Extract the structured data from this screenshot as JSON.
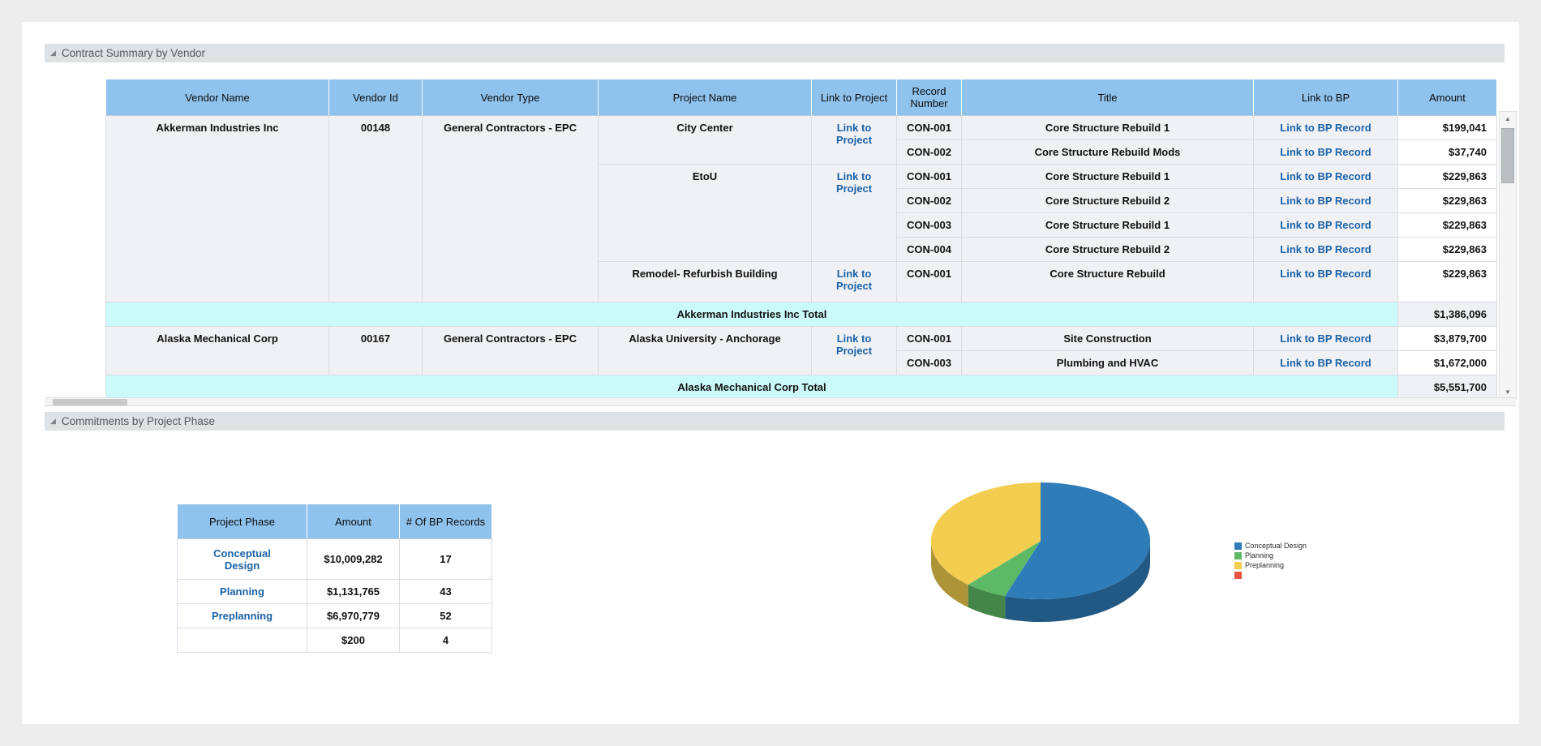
{
  "sections": {
    "contract_summary": {
      "title": "Contract Summary by Vendor"
    },
    "commitments": {
      "title": "Commitments by Project Phase"
    }
  },
  "contract_table": {
    "headers": [
      "Vendor Name",
      "Vendor Id",
      "Vendor Type",
      "Project Name",
      "Link to Project",
      "Record Number",
      "Title",
      "Link to BP",
      "Amount"
    ],
    "link_to_project_label": "Link to Project",
    "link_to_bp_label": "Link to BP Record",
    "vendors": [
      {
        "name": "Akkerman Industries Inc",
        "id": "00148",
        "type": "General Contractors - EPC",
        "projects": [
          {
            "name": "City Center",
            "records": [
              {
                "record": "CON-001",
                "title": "Core Structure Rebuild 1",
                "amount": "$199,041"
              },
              {
                "record": "CON-002",
                "title": "Core Structure Rebuild Mods",
                "amount": "$37,740"
              }
            ]
          },
          {
            "name": "EtoU",
            "records": [
              {
                "record": "CON-001",
                "title": "Core Structure Rebuild 1",
                "amount": "$229,863"
              },
              {
                "record": "CON-002",
                "title": "Core Structure Rebuild 2",
                "amount": "$229,863"
              },
              {
                "record": "CON-003",
                "title": "Core Structure Rebuild 1",
                "amount": "$229,863"
              },
              {
                "record": "CON-004",
                "title": "Core Structure Rebuild 2",
                "amount": "$229,863"
              }
            ]
          },
          {
            "name": "Remodel- Refurbish Building",
            "tall": true,
            "records": [
              {
                "record": "CON-001",
                "title": "Core Structure Rebuild",
                "amount": "$229,863"
              }
            ]
          }
        ],
        "total_label": "Akkerman Industries Inc Total",
        "total_amount": "$1,386,096"
      },
      {
        "name": "Alaska Mechanical Corp",
        "id": "00167",
        "type": "General Contractors - EPC",
        "projects": [
          {
            "name": "Alaska University - Anchorage",
            "records": [
              {
                "record": "CON-001",
                "title": "Site Construction",
                "amount": "$3,879,700"
              },
              {
                "record": "CON-003",
                "title": "Plumbing and HVAC",
                "amount": "$1,672,000"
              }
            ]
          }
        ],
        "total_label": "Alaska Mechanical Corp Total",
        "total_amount": "$5,551,700"
      }
    ]
  },
  "phase_table": {
    "headers": [
      "Project Phase",
      "Amount",
      "# Of BP Records"
    ],
    "rows": [
      {
        "phase": "Conceptual Design",
        "amount": "$10,009,282",
        "count": "17",
        "link": true
      },
      {
        "phase": "Planning",
        "amount": "$1,131,765",
        "count": "43",
        "link": true
      },
      {
        "phase": "Preplanning",
        "amount": "$6,970,779",
        "count": "52",
        "link": true
      },
      {
        "phase": "",
        "amount": "$200",
        "count": "4",
        "link": false
      }
    ]
  },
  "chart_data": {
    "type": "pie",
    "style": "3d",
    "labels": [
      "Conceptual Design",
      "Planning",
      "Preplanning",
      ""
    ],
    "values": [
      10009282,
      1131765,
      6970779,
      200
    ],
    "colors": [
      "#2e7cb8",
      "#5eb966",
      "#f2cd4f",
      "#e8543f"
    ],
    "legend_position": "right"
  }
}
